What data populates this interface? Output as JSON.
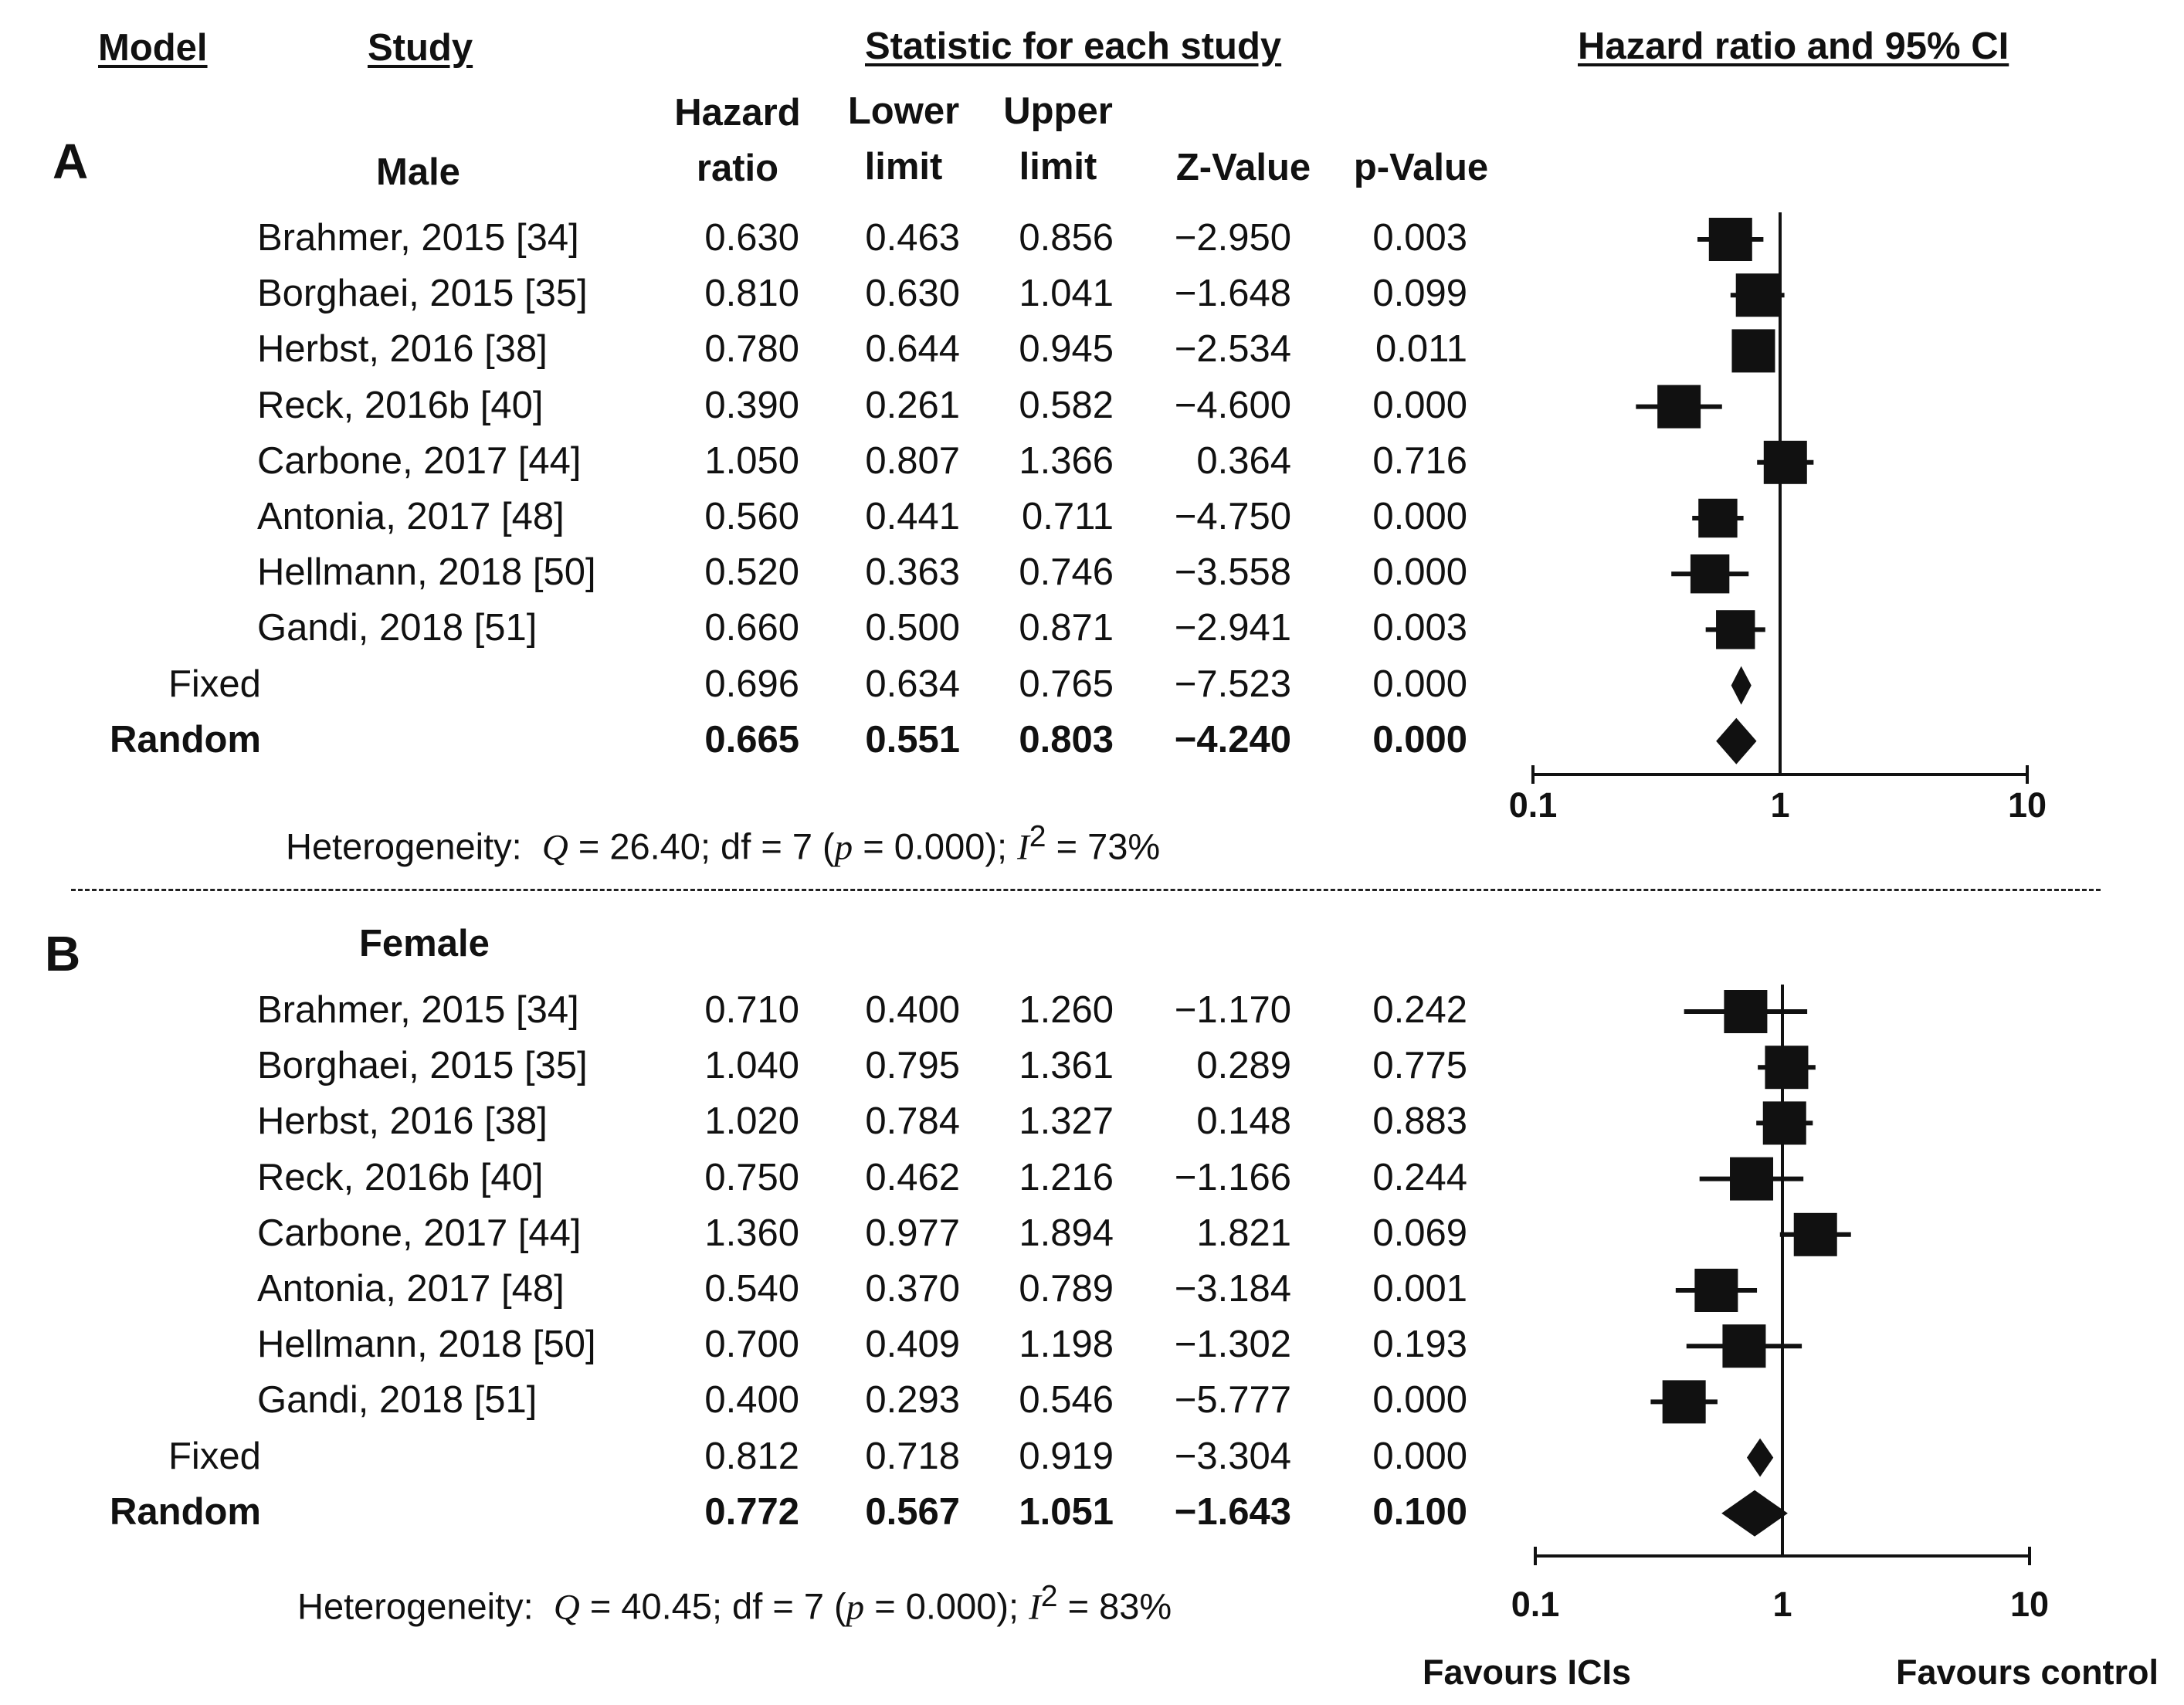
{
  "headers": {
    "model": "Model",
    "study": "Study",
    "statistic": "Statistic for each study",
    "ci": "Hazard ratio and 95% CI"
  },
  "columns": {
    "hr_line1": "Hazard",
    "hr_line2": "ratio",
    "lower_line1": "Lower",
    "lower_line2": "limit",
    "upper_line1": "Upper",
    "upper_line2": "limit",
    "z": "Z-Value",
    "p": "p-Value"
  },
  "heterogeneity_label": "Heterogeneity:",
  "footer": {
    "left": "Favours  ICIs",
    "right": "Favours control"
  },
  "chart_data": [
    {
      "type": "forest",
      "panel": "A",
      "subgroup": "Male",
      "xscale": "log",
      "xlim": [
        0.1,
        10
      ],
      "xticks": [
        "0.1",
        "1",
        "10"
      ],
      "reference_line": 1,
      "rows": [
        {
          "study": "Brahmer, 2015 [34]",
          "hr": "0.630",
          "lower": "0.463",
          "upper": "0.856",
          "z": "−2.950",
          "p": "0.003",
          "weight": 1.0
        },
        {
          "study": "Borghaei, 2015 [35]",
          "hr": "0.810",
          "lower": "0.630",
          "upper": "1.041",
          "z": "−1.648",
          "p": "0.099",
          "weight": 1.0
        },
        {
          "study": "Herbst, 2016 [38]",
          "hr": "0.780",
          "lower": "0.644",
          "upper": "0.945",
          "z": "−2.534",
          "p": "0.011",
          "weight": 1.0
        },
        {
          "study": "Reck, 2016b [40]",
          "hr": "0.390",
          "lower": "0.261",
          "upper": "0.582",
          "z": "−4.600",
          "p": "0.000",
          "weight": 1.0
        },
        {
          "study": "Carbone, 2017 [44]",
          "hr": "1.050",
          "lower": "0.807",
          "upper": "1.366",
          "z": "0.364",
          "p": "0.716",
          "weight": 1.0
        },
        {
          "study": "Antonia, 2017 [48]",
          "hr": "0.560",
          "lower": "0.441",
          "upper": "0.711",
          "z": "−4.750",
          "p": "0.000",
          "weight": 0.9
        },
        {
          "study": "Hellmann, 2018 [50]",
          "hr": "0.520",
          "lower": "0.363",
          "upper": "0.746",
          "z": "−3.558",
          "p": "0.000",
          "weight": 0.9
        },
        {
          "study": "Gandi, 2018 [51]",
          "hr": "0.660",
          "lower": "0.500",
          "upper": "0.871",
          "z": "−2.941",
          "p": "0.003",
          "weight": 0.9
        }
      ],
      "summary": [
        {
          "label": "Fixed",
          "hr": "0.696",
          "lower": "0.634",
          "upper": "0.765",
          "z": "−7.523",
          "p": "0.000",
          "bold": false
        },
        {
          "label": "Random",
          "hr": "0.665",
          "lower": "0.551",
          "upper": "0.803",
          "z": "−4.240",
          "p": "0.000",
          "bold": true
        }
      ],
      "heterogeneity": {
        "q_sym": "Q",
        "q_val": " = 26.40; df = 7 (",
        "p_sym": "p",
        "p_val": " = 0.000); ",
        "i_sym": "I",
        "i_sup": "2",
        "i_val": " = 73%"
      }
    },
    {
      "type": "forest",
      "panel": "B",
      "subgroup": "Female",
      "xscale": "log",
      "xlim": [
        0.1,
        10
      ],
      "xticks": [
        "0.1",
        "1",
        "10"
      ],
      "reference_line": 1,
      "rows": [
        {
          "study": "Brahmer, 2015 [34]",
          "hr": "0.710",
          "lower": "0.400",
          "upper": "1.260",
          "z": "−1.170",
          "p": "0.242",
          "weight": 1.0
        },
        {
          "study": "Borghaei, 2015 [35]",
          "hr": "1.040",
          "lower": "0.795",
          "upper": "1.361",
          "z": "0.289",
          "p": "0.775",
          "weight": 1.0
        },
        {
          "study": "Herbst, 2016 [38]",
          "hr": "1.020",
          "lower": "0.784",
          "upper": "1.327",
          "z": "0.148",
          "p": "0.883",
          "weight": 1.0
        },
        {
          "study": "Reck, 2016b [40]",
          "hr": "0.750",
          "lower": "0.462",
          "upper": "1.216",
          "z": "−1.166",
          "p": "0.244",
          "weight": 1.0
        },
        {
          "study": "Carbone, 2017 [44]",
          "hr": "1.360",
          "lower": "0.977",
          "upper": "1.894",
          "z": "1.821",
          "p": "0.069",
          "weight": 1.0
        },
        {
          "study": "Antonia, 2017 [48]",
          "hr": "0.540",
          "lower": "0.370",
          "upper": "0.789",
          "z": "−3.184",
          "p": "0.001",
          "weight": 1.0
        },
        {
          "study": "Hellmann, 2018 [50]",
          "hr": "0.700",
          "lower": "0.409",
          "upper": "1.198",
          "z": "−1.302",
          "p": "0.193",
          "weight": 1.0
        },
        {
          "study": "Gandi, 2018 [51]",
          "hr": "0.400",
          "lower": "0.293",
          "upper": "0.546",
          "z": "−5.777",
          "p": "0.000",
          "weight": 1.0
        }
      ],
      "summary": [
        {
          "label": "Fixed",
          "hr": "0.812",
          "lower": "0.718",
          "upper": "0.919",
          "z": "−3.304",
          "p": "0.000",
          "bold": false
        },
        {
          "label": "Random",
          "hr": "0.772",
          "lower": "0.567",
          "upper": "1.051",
          "z": "−1.643",
          "p": "0.100",
          "bold": true
        }
      ],
      "heterogeneity": {
        "q_sym": "Q",
        "q_val": " = 40.45; df = 7 (",
        "p_sym": "p",
        "p_val": " = 0.000); ",
        "i_sym": "I",
        "i_sup": "2",
        "i_val": " = 83%"
      }
    }
  ]
}
